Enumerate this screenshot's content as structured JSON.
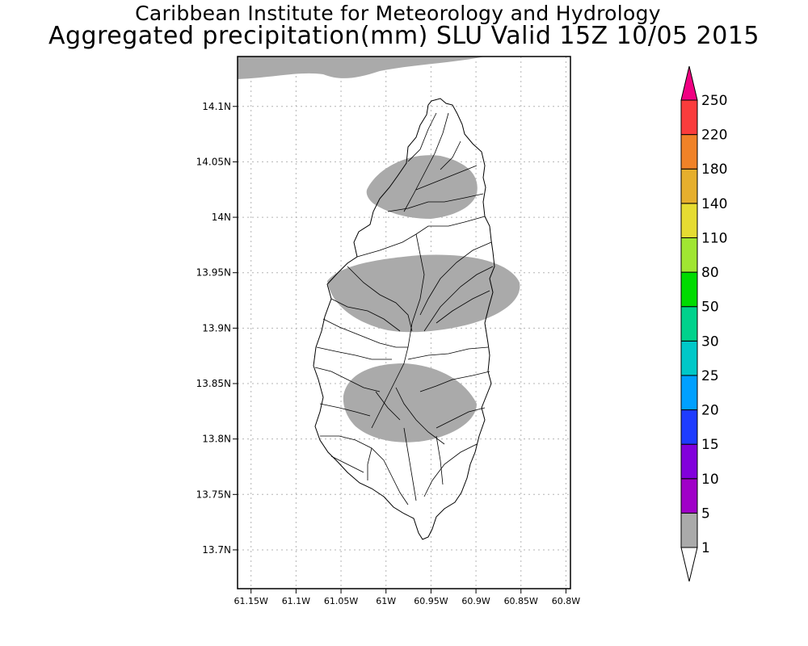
{
  "title": {
    "line1": "Caribbean Institute for Meteorology and Hydrology",
    "line2": "Aggregated precipitation(mm) SLU Valid 15Z 10/05 2015"
  },
  "map": {
    "lon_range": [
      -61.165,
      -60.795
    ],
    "lat_range": [
      13.665,
      14.145
    ],
    "lon_ticks": [
      {
        "value": -61.15,
        "label": "61.15W"
      },
      {
        "value": -61.1,
        "label": "61.1W"
      },
      {
        "value": -61.05,
        "label": "61.05W"
      },
      {
        "value": -61.0,
        "label": "61W"
      },
      {
        "value": -60.95,
        "label": "60.95W"
      },
      {
        "value": -60.9,
        "label": "60.9W"
      },
      {
        "value": -60.85,
        "label": "60.85W"
      },
      {
        "value": -60.8,
        "label": "60.8W"
      }
    ],
    "lat_ticks": [
      {
        "value": 14.1,
        "label": "14.1N"
      },
      {
        "value": 14.05,
        "label": "14.05N"
      },
      {
        "value": 14.0,
        "label": "14N"
      },
      {
        "value": 13.95,
        "label": "13.95N"
      },
      {
        "value": 13.9,
        "label": "13.9N"
      },
      {
        "value": 13.85,
        "label": "13.85N"
      },
      {
        "value": 13.8,
        "label": "13.8N"
      },
      {
        "value": 13.75,
        "label": "13.75N"
      },
      {
        "value": 13.7,
        "label": "13.7N"
      }
    ],
    "grid": true,
    "precip_category": "1-5 mm",
    "precip_color": "#aaaaaa"
  },
  "colorbar": {
    "labels": [
      "1",
      "5",
      "10",
      "15",
      "20",
      "25",
      "30",
      "50",
      "80",
      "110",
      "140",
      "180",
      "220",
      "250"
    ],
    "colors": [
      "#aaaaaa",
      "#a000c8",
      "#8200dc",
      "#1e3cff",
      "#00a0ff",
      "#00c8c8",
      "#00d28c",
      "#00dc00",
      "#a0e632",
      "#e6dc32",
      "#e6af2d",
      "#f08228",
      "#fa3c3c",
      "#f00082"
    ]
  }
}
